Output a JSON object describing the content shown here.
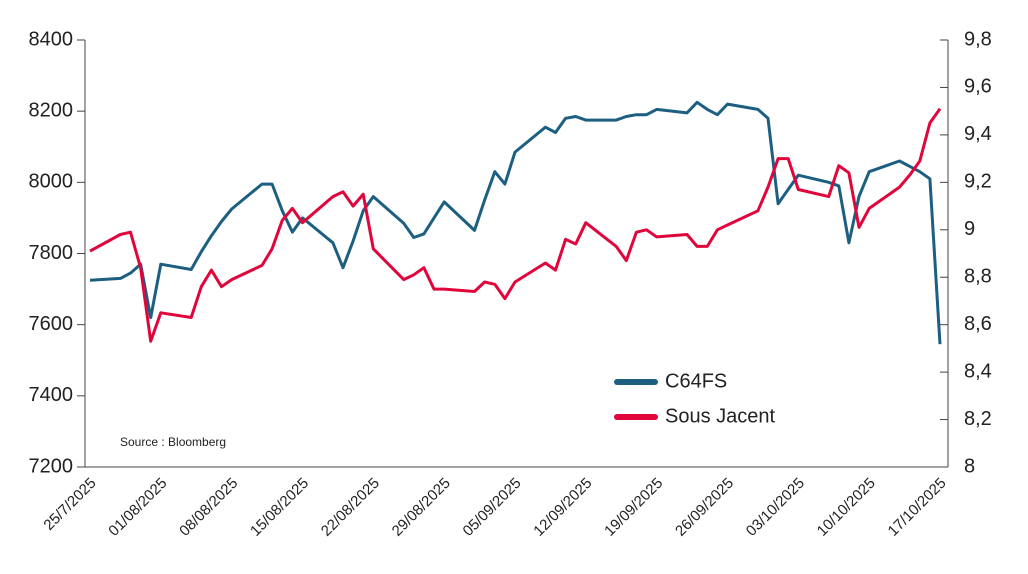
{
  "chart_data": {
    "type": "line",
    "annotation": "Source : Bloomberg",
    "x": [
      "2025-07-25",
      "2025-07-28",
      "2025-07-29",
      "2025-07-30",
      "2025-07-31",
      "2025-08-01",
      "2025-08-04",
      "2025-08-05",
      "2025-08-06",
      "2025-08-07",
      "2025-08-08",
      "2025-08-11",
      "2025-08-12",
      "2025-08-13",
      "2025-08-14",
      "2025-08-15",
      "2025-08-18",
      "2025-08-19",
      "2025-08-20",
      "2025-08-21",
      "2025-08-22",
      "2025-08-25",
      "2025-08-26",
      "2025-08-27",
      "2025-08-28",
      "2025-08-29",
      "2025-09-01",
      "2025-09-02",
      "2025-09-03",
      "2025-09-04",
      "2025-09-05",
      "2025-09-08",
      "2025-09-09",
      "2025-09-10",
      "2025-09-11",
      "2025-09-12",
      "2025-09-15",
      "2025-09-16",
      "2025-09-17",
      "2025-09-18",
      "2025-09-19",
      "2025-09-22",
      "2025-09-23",
      "2025-09-24",
      "2025-09-25",
      "2025-09-26",
      "2025-09-29",
      "2025-09-30",
      "2025-10-01",
      "2025-10-02",
      "2025-10-03",
      "2025-10-06",
      "2025-10-07",
      "2025-10-08",
      "2025-10-09",
      "2025-10-10",
      "2025-10-13",
      "2025-10-14",
      "2025-10-15",
      "2025-10-16",
      "2025-10-17"
    ],
    "series": [
      {
        "name": "C64FS",
        "color": "#1c5f80",
        "axis": "y",
        "values": [
          7725,
          7730,
          7745,
          7770,
          7620,
          7770,
          7755,
          7805,
          7850,
          7890,
          7925,
          7995,
          7995,
          7920,
          7860,
          7900,
          7830,
          7760,
          7835,
          7920,
          7960,
          7885,
          7845,
          7855,
          7900,
          7945,
          7865,
          7950,
          8030,
          7995,
          8085,
          8155,
          8140,
          8180,
          8185,
          8175,
          8175,
          8185,
          8190,
          8190,
          8205,
          8195,
          8225,
          8205,
          8190,
          8220,
          8205,
          8180,
          7940,
          7980,
          8020,
          8000,
          7990,
          7830,
          7960,
          8030,
          8060,
          8045,
          8030,
          8010,
          7545
        ]
      },
      {
        "name": "Sous Jacent",
        "color": "#e0063c",
        "axis": "y2",
        "values": [
          8.91,
          8.98,
          8.99,
          8.84,
          8.53,
          8.65,
          8.63,
          8.76,
          8.83,
          8.76,
          8.79,
          8.85,
          8.92,
          9.04,
          9.09,
          9.03,
          9.14,
          9.16,
          9.1,
          9.15,
          8.92,
          8.79,
          8.81,
          8.84,
          8.75,
          8.75,
          8.74,
          8.78,
          8.77,
          8.71,
          8.78,
          8.86,
          8.83,
          8.96,
          8.94,
          9.03,
          8.93,
          8.87,
          8.99,
          9.0,
          8.97,
          8.98,
          8.93,
          8.93,
          9.0,
          9.02,
          9.08,
          9.18,
          9.3,
          9.3,
          9.17,
          9.14,
          9.27,
          9.24,
          9.01,
          9.09,
          9.18,
          9.23,
          9.29,
          9.45,
          9.51
        ]
      }
    ],
    "xlim": [
      "2025-07-25",
      "2025-10-17"
    ],
    "xticks": [
      {
        "value": "2025-07-25",
        "label": "25/7/2025"
      },
      {
        "value": "2025-08-01",
        "label": "01/08/2025"
      },
      {
        "value": "2025-08-08",
        "label": "08/08/2025"
      },
      {
        "value": "2025-08-15",
        "label": "15/08/2025"
      },
      {
        "value": "2025-08-22",
        "label": "22/08/2025"
      },
      {
        "value": "2025-08-29",
        "label": "29/08/2025"
      },
      {
        "value": "2025-09-05",
        "label": "05/09/2025"
      },
      {
        "value": "2025-09-12",
        "label": "12/09/2025"
      },
      {
        "value": "2025-09-19",
        "label": "19/09/2025"
      },
      {
        "value": "2025-09-26",
        "label": "26/09/2025"
      },
      {
        "value": "2025-10-03",
        "label": "03/10/2025"
      },
      {
        "value": "2025-10-10",
        "label": "10/10/2025"
      },
      {
        "value": "2025-10-17",
        "label": "17/10/2025"
      }
    ],
    "ylim": [
      7200,
      8400
    ],
    "yticks": [
      7200,
      7400,
      7600,
      7800,
      8000,
      8200,
      8400
    ],
    "y2lim": [
      8,
      9.8
    ],
    "y2ticks": [
      8,
      {
        "value": 8.2,
        "label": "8,2"
      },
      {
        "value": 8.4,
        "label": "8,4"
      },
      {
        "value": 8.6,
        "label": "8,6"
      },
      {
        "value": 8.8,
        "label": "8,8"
      },
      9,
      {
        "value": 9.2,
        "label": "9,2"
      },
      {
        "value": 9.4,
        "label": "9,4"
      },
      {
        "value": 9.6,
        "label": "9,6"
      },
      {
        "value": 9.8,
        "label": "9,8"
      }
    ],
    "legend": "lower right",
    "grid": false
  }
}
